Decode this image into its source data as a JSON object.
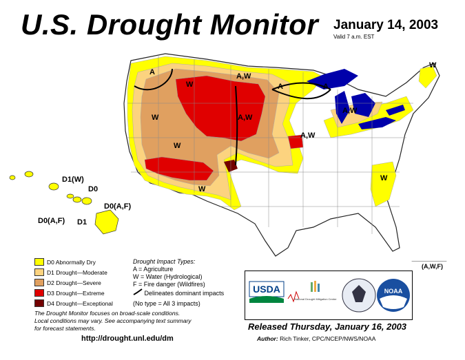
{
  "header": {
    "title": "U.S. Drought Monitor",
    "date": "January 14, 2003",
    "valid": "Valid 7 a.m. EST"
  },
  "map_labels": {
    "a_nw": "A",
    "w_mt": "W",
    "w_or": "W",
    "w_id": "W",
    "aw_nd": "A,W",
    "a_mn": "A",
    "a_mi": "A",
    "aw_mi": "A,W",
    "aw_ne": "A,W",
    "aw_ks": "A,W",
    "w_nm": "W",
    "w_ga": "W",
    "w_ne": "W"
  },
  "hawaii_labels": {
    "d1w": "D1(W)",
    "d0_top": "D0",
    "d0af_left": "D0(A,F)",
    "d1": "D1",
    "d0af_right": "D0(A,F)"
  },
  "puerto_rico_label": "(A,W,F)",
  "legend": {
    "items": [
      {
        "label": "D0 Abnormally Dry",
        "color": "#ffff00"
      },
      {
        "label": "D1 Drought—Moderate",
        "color": "#fcd37f"
      },
      {
        "label": "D2 Drought—Severe",
        "color": "#e0a060"
      },
      {
        "label": "D3 Drought—Extreme",
        "color": "#e00000"
      },
      {
        "label": "D4 Drought—Exceptional",
        "color": "#730000"
      }
    ]
  },
  "impact_types": {
    "heading": "Drought Impact Types:",
    "a": "A = Agriculture",
    "w": "W = Water (Hydrological)",
    "f": "F = Fire danger (Wildfires)",
    "delineates": "Delineates dominant impacts",
    "no_type": "(No type = All 3 impacts)"
  },
  "note": {
    "line1": "The Drought Monitor focuses on broad-scale conditions.",
    "line2": "Local conditions may vary. See accompanying text summary",
    "line3": "for forecast statements."
  },
  "url": "http://drought.unl.edu/dm",
  "logos": {
    "usda": "USDA",
    "ndmc": "National Drought Mitigation Center",
    "noaa": "NOAA"
  },
  "released": "Released Thursday, January 16, 2003",
  "author": {
    "label": "Author:",
    "name": "Rich Tinker, CPC/NCEP/NWS/NOAA"
  }
}
